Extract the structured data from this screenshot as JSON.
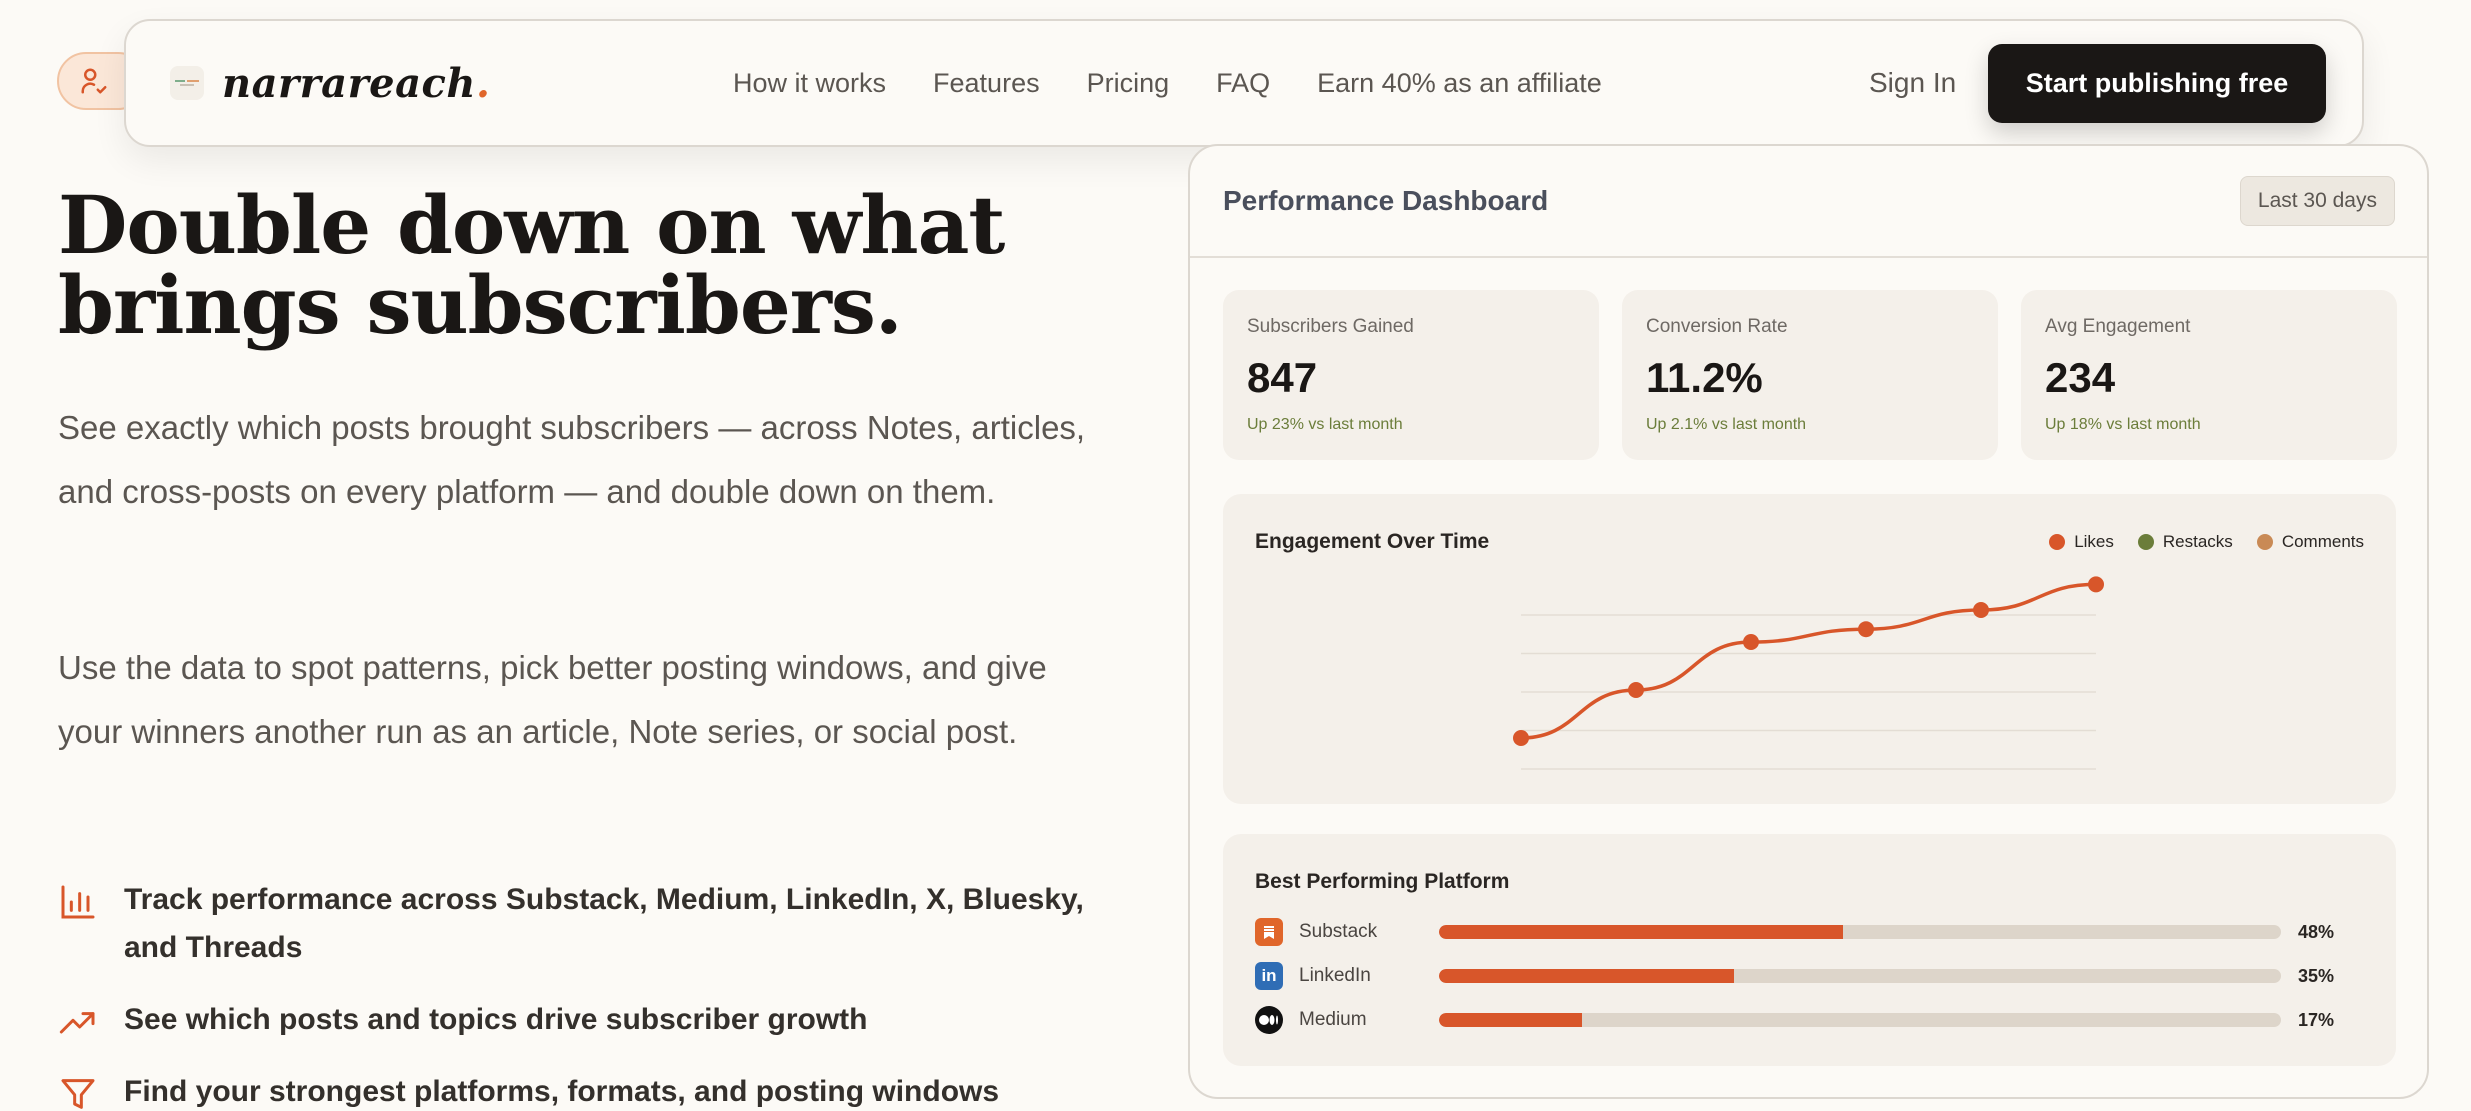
{
  "brand": {
    "name": "narrareach",
    "dot": "."
  },
  "nav": {
    "links": [
      "How it works",
      "Features",
      "Pricing",
      "FAQ",
      "Earn 40% as an affiliate"
    ],
    "sign_in": "Sign In",
    "cta": "Start publishing free"
  },
  "hero": {
    "title": "Double down on what brings subscribers.",
    "paragraph1": "See exactly which posts brought subscribers — across Notes, articles, and cross-posts on every platform — and double down on them.",
    "paragraph2": "Use the data to spot patterns, pick better posting windows, and give your winners another run as an article, Note series, or social post.",
    "features": [
      {
        "icon": "bar-chart-icon",
        "text": "Track performance across Substack, Medium, LinkedIn, X, Bluesky, and Threads"
      },
      {
        "icon": "trending-up-icon",
        "text": "See which posts and topics drive subscriber growth"
      },
      {
        "icon": "funnel-icon",
        "text": "Find your strongest platforms, formats, and posting windows"
      }
    ]
  },
  "dashboard": {
    "title": "Performance Dashboard",
    "range": "Last 30 days",
    "stats": [
      {
        "label": "Subscribers Gained",
        "value": "847",
        "delta": "Up 23% vs last month"
      },
      {
        "label": "Conversion Rate",
        "value": "11.2%",
        "delta": "Up 2.1% vs last month"
      },
      {
        "label": "Avg Engagement",
        "value": "234",
        "delta": "Up 18% vs last month"
      }
    ],
    "engagement": {
      "title": "Engagement Over Time",
      "legend": [
        {
          "name": "Likes",
          "color": "#d8562a"
        },
        {
          "name": "Restacks",
          "color": "#6b7d3a"
        },
        {
          "name": "Comments",
          "color": "#c98a55"
        }
      ]
    },
    "platforms": {
      "title": "Best Performing Platform",
      "items": [
        {
          "name": "Substack",
          "value": 48,
          "pct_label": "48%",
          "icon": "substack-icon",
          "icon_color": "#e0662a"
        },
        {
          "name": "LinkedIn",
          "value": 35,
          "pct_label": "35%",
          "icon": "linkedin-icon",
          "icon_color": "#2f6db5"
        },
        {
          "name": "Medium",
          "value": 17,
          "pct_label": "17%",
          "icon": "medium-icon",
          "icon_color": "#111111"
        }
      ]
    }
  },
  "chart_data": {
    "type": "line",
    "title": "Engagement Over Time",
    "x": [
      1,
      2,
      3,
      4,
      5,
      6
    ],
    "series": [
      {
        "name": "Likes",
        "values": [
          10,
          25,
          40,
          44,
          50,
          58
        ],
        "color": "#d8562a"
      }
    ],
    "ylim": [
      0,
      60
    ],
    "grid": true,
    "legend": "top-right",
    "legend_entries": [
      "Likes",
      "Restacks",
      "Comments"
    ]
  },
  "colors": {
    "accent": "#d8562a",
    "positive": "#6b7d3a",
    "dark": "#1a1715"
  }
}
